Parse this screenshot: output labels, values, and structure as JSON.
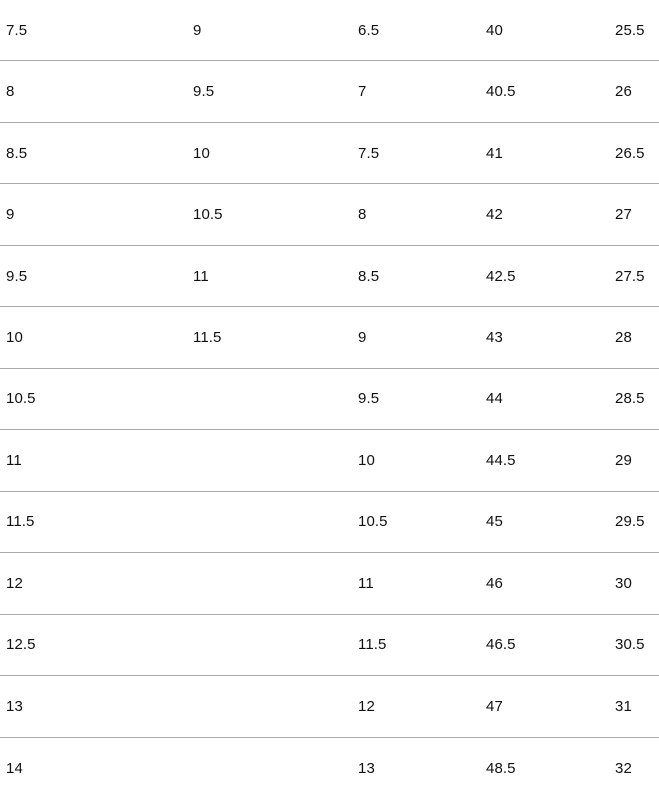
{
  "table": {
    "description": "shoe-size-conversion-table",
    "columns_count": 5,
    "rows": [
      {
        "cells": [
          "7.5",
          "9",
          "6.5",
          "40",
          "25.5"
        ]
      },
      {
        "cells": [
          "8",
          "9.5",
          "7",
          "40.5",
          "26"
        ]
      },
      {
        "cells": [
          "8.5",
          "10",
          "7.5",
          "41",
          "26.5"
        ]
      },
      {
        "cells": [
          "9",
          "10.5",
          "8",
          "42",
          "27"
        ]
      },
      {
        "cells": [
          "9.5",
          "11",
          "8.5",
          "42.5",
          "27.5"
        ]
      },
      {
        "cells": [
          "10",
          "11.5",
          "9",
          "43",
          "28"
        ]
      },
      {
        "cells": [
          "10.5",
          "",
          "9.5",
          "44",
          "28.5"
        ]
      },
      {
        "cells": [
          "11",
          "",
          "10",
          "44.5",
          "29"
        ]
      },
      {
        "cells": [
          "11.5",
          "",
          "10.5",
          "45",
          "29.5"
        ]
      },
      {
        "cells": [
          "12",
          "",
          "11",
          "46",
          "30"
        ]
      },
      {
        "cells": [
          "12.5",
          "",
          "11.5",
          "46.5",
          "30.5"
        ]
      },
      {
        "cells": [
          "13",
          "",
          "12",
          "47",
          "31"
        ]
      },
      {
        "cells": [
          "14",
          "",
          "13",
          "48.5",
          "32"
        ]
      }
    ],
    "colors": {
      "background": "#ffffff",
      "text": "#111111",
      "row_separator": "#a9a9a9"
    }
  }
}
